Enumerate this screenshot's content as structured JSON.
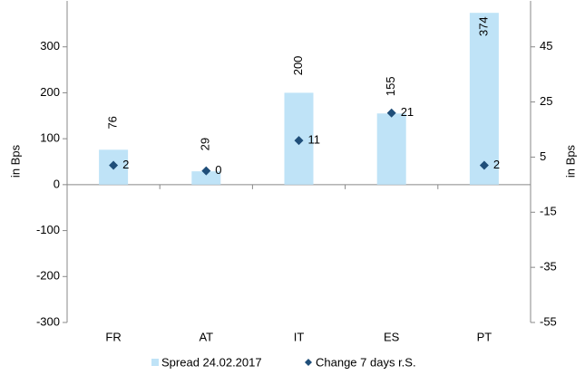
{
  "chart_data": {
    "type": "bar",
    "categories": [
      "FR",
      "AT",
      "IT",
      "ES",
      "PT"
    ],
    "series": [
      {
        "name": "Spread 24.02.2017",
        "color": "#bfe3f7",
        "values": [
          76,
          29,
          200,
          155,
          374
        ]
      },
      {
        "name": "Change 7 days r.S.",
        "color": "#1f4e79",
        "axis": "y2",
        "values": [
          2,
          0,
          11,
          21,
          2
        ]
      }
    ],
    "ylabel": "in Bps",
    "y2label": "in Bps",
    "ylim": [
      -300,
      400
    ],
    "yticks": [
      -300,
      -200,
      -100,
      0,
      100,
      200,
      300
    ],
    "y2lim": [
      -55,
      61.67
    ],
    "y2ticks": [
      -55,
      -35,
      -15,
      5,
      25,
      45
    ]
  }
}
